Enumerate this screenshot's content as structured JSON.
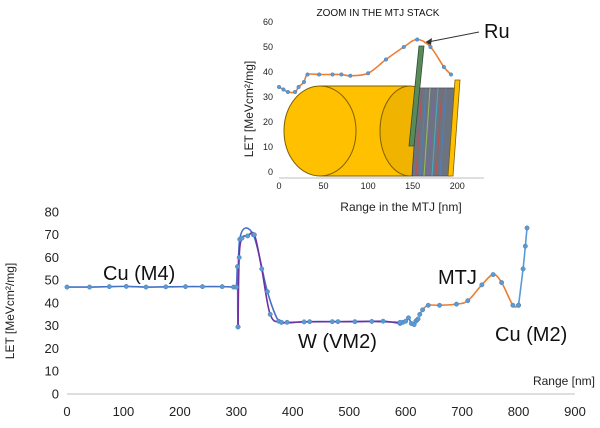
{
  "chart_data": [
    {
      "type": "line",
      "title": "",
      "xlabel": "Range [nm]",
      "ylabel": "LET [MeVcm²/mg]",
      "xlim": [
        0,
        900
      ],
      "ylim": [
        0,
        80
      ],
      "x_ticks": [
        "0",
        "100",
        "200",
        "300",
        "400",
        "500",
        "600",
        "700",
        "800",
        "900"
      ],
      "y_ticks": [
        "0",
        "10",
        "20",
        "30",
        "40",
        "50",
        "60",
        "70",
        "80"
      ],
      "grid": false,
      "series": [
        {
          "color": "#4472c4",
          "points": [
            [
              0,
              47
            ],
            [
              40,
              47
            ],
            [
              75,
              47.2
            ],
            [
              105,
              47.3
            ],
            [
              140,
              47
            ],
            [
              175,
              47.1
            ],
            [
              210,
              47.2
            ],
            [
              240,
              47.2
            ],
            [
              275,
              47.2
            ],
            [
              295,
              47
            ],
            [
              300,
              47
            ],
            [
              302,
              56
            ],
            [
              303,
              29.5
            ],
            [
              306,
              68
            ],
            [
              330,
              70
            ],
            [
              355,
              45
            ],
            [
              375,
              32
            ],
            [
              390,
              31.5
            ],
            [
              430,
              31.8
            ],
            [
              470,
              31.8
            ],
            [
              510,
              31.8
            ],
            [
              560,
              32
            ],
            [
              590,
              31
            ],
            [
              595,
              31.5
            ],
            [
              600,
              32
            ],
            [
              605,
              33.5
            ],
            [
              610,
              31
            ],
            [
              615,
              30.5
            ],
            [
              618,
              32
            ],
            [
              620,
              32.5
            ],
            [
              622,
              33
            ]
          ]
        },
        {
          "color": "#7030a0",
          "points": [
            [
              303,
              29.5
            ],
            [
              305,
              60
            ],
            [
              310,
              68.5
            ],
            [
              320,
              69.5
            ],
            [
              332,
              70
            ],
            [
              345,
              55
            ],
            [
              360,
              35
            ],
            [
              380,
              31.5
            ],
            [
              420,
              31.7
            ],
            [
              480,
              31.8
            ],
            [
              540,
              31.9
            ],
            [
              590,
              31.5
            ]
          ]
        },
        {
          "color": "#ed7d31",
          "points": [
            [
              625,
              35
            ],
            [
              630,
              37
            ],
            [
              640,
              39
            ],
            [
              660,
              39
            ],
            [
              690,
              39.5
            ],
            [
              710,
              41
            ],
            [
              735,
              48
            ],
            [
              755,
              52.5
            ],
            [
              770,
              49
            ],
            [
              790,
              39
            ],
            [
              800,
              39
            ]
          ]
        },
        {
          "color": "#5b9bd5",
          "points": [
            [
              800,
              39
            ],
            [
              808,
              55
            ],
            [
              812,
              65
            ],
            [
              815,
              73
            ]
          ]
        }
      ],
      "annotations": [
        "Cu (M4)",
        "W (VM2)",
        "MTJ",
        "Cu (M2)"
      ]
    },
    {
      "type": "line",
      "title": "ZOOM IN THE MTJ STACK",
      "xlabel": "Range in the MTJ [nm]",
      "ylabel": "LET [MeVcm²/mg]",
      "xlim": [
        0,
        230
      ],
      "ylim": [
        0,
        60
      ],
      "x_ticks": [
        "0",
        "50",
        "100",
        "150",
        "200"
      ],
      "y_ticks": [
        "0",
        "10",
        "20",
        "30",
        "40",
        "50",
        "60"
      ],
      "grid": false,
      "series": [
        {
          "color": "#ed7d31",
          "points": [
            [
              0,
              34
            ],
            [
              5,
              33
            ],
            [
              10,
              32
            ],
            [
              18,
              32
            ],
            [
              22,
              34
            ],
            [
              28,
              36
            ],
            [
              32,
              39
            ],
            [
              45,
              39
            ],
            [
              60,
              39
            ],
            [
              70,
              39
            ],
            [
              80,
              38.5
            ],
            [
              100,
              39.5
            ],
            [
              120,
              45
            ],
            [
              140,
              50
            ],
            [
              155,
              53
            ],
            [
              170,
              50
            ],
            [
              185,
              42
            ],
            [
              193,
              39
            ]
          ]
        }
      ],
      "annotations": [
        "Ru"
      ]
    }
  ],
  "colors": {
    "blue": "#4472c4",
    "purple": "#7030a0",
    "orange": "#ed7d31",
    "cylinder_gold": "#ffc000",
    "cylinder_gold_dark": "#c89000",
    "stack_gray": "#6b7480",
    "ru_green": "#5a8a5a"
  },
  "icons": [
    "mtj-cylinder-illustration",
    "ru-layer-illustration",
    "ru-arrow"
  ]
}
